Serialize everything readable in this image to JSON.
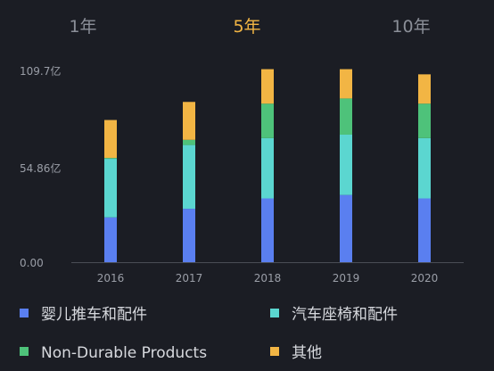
{
  "tabs": [
    {
      "label": "1年",
      "active": false
    },
    {
      "label": "5年",
      "active": true
    },
    {
      "label": "10年",
      "active": false
    }
  ],
  "colors": {
    "background": "#1b1d24",
    "active_tab": "#f2b544",
    "axis_text": "#9a9ea7",
    "baseline": "#4a4d55"
  },
  "chart_data": {
    "type": "bar",
    "stacked": true,
    "title": "",
    "xlabel": "",
    "ylabel": "",
    "categories": [
      "2016",
      "2017",
      "2018",
      "2019",
      "2020"
    ],
    "ylim": [
      0,
      109.7
    ],
    "yticks": [
      0,
      54.86,
      109.7
    ],
    "ytick_labels": [
      "0.00",
      "54.86亿",
      "109.7亿"
    ],
    "grid": false,
    "legend_position": "bottom",
    "series": [
      {
        "name": "婴儿推车和配件",
        "color": "#5a7ff0",
        "values": [
          26,
          31,
          37,
          39,
          37
        ]
      },
      {
        "name": "汽车座椅和配件",
        "color": "#5bd6d0",
        "values": [
          34,
          37,
          35,
          35,
          35
        ]
      },
      {
        "name": "Non-Durable Products",
        "color": "#4ec27a",
        "values": [
          0.5,
          3,
          20,
          21,
          20
        ]
      },
      {
        "name": "其他",
        "color": "#f2b544",
        "values": [
          22,
          22,
          20,
          17,
          17
        ]
      }
    ]
  }
}
